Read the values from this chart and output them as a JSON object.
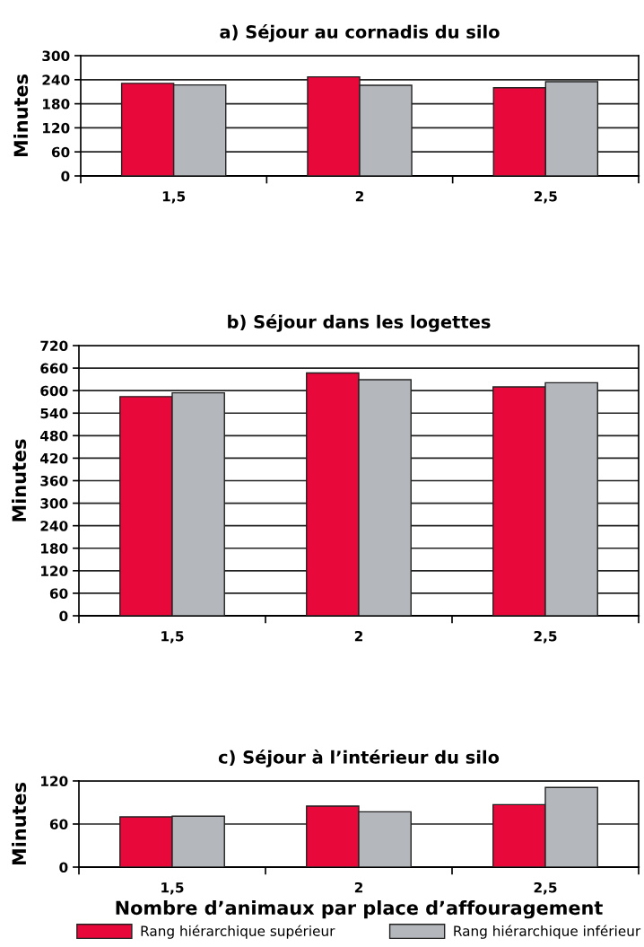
{
  "chart_data": [
    {
      "type": "bar",
      "title": "a) Séjour au cornadis du silo",
      "ylabel": "Minutes",
      "categories": [
        "1,5",
        "2",
        "2,5"
      ],
      "series": [
        {
          "color": "#e8083a",
          "values": [
            231,
            247,
            220
          ]
        },
        {
          "color": "#b4b8bc",
          "values": [
            227,
            226,
            235
          ]
        }
      ],
      "ylim": [
        0,
        300
      ],
      "yticks": [
        0,
        60,
        120,
        180,
        240,
        300
      ],
      "grid": "y"
    },
    {
      "type": "bar",
      "title": "b) Séjour dans les logettes",
      "ylabel": "Minutes",
      "categories": [
        "1,5",
        "2",
        "2,5"
      ],
      "series": [
        {
          "color": "#e8083a",
          "values": [
            584,
            647,
            610
          ]
        },
        {
          "color": "#b4b8bc",
          "values": [
            594,
            629,
            621
          ]
        }
      ],
      "ylim": [
        0,
        720
      ],
      "yticks": [
        0,
        60,
        120,
        180,
        240,
        300,
        360,
        420,
        480,
        540,
        600,
        660,
        720
      ],
      "grid": "y"
    },
    {
      "type": "bar",
      "title": "c) Séjour à l’intérieur du silo",
      "ylabel": "Minutes",
      "xlabel": "Nombre d’animaux par place d’affouragement",
      "categories": [
        "1,5",
        "2",
        "2,5"
      ],
      "series": [
        {
          "name": "Rang hiérarchique supérieur",
          "color": "#e8083a",
          "values": [
            70,
            85,
            87
          ]
        },
        {
          "name": "Rang hiérarchique inférieur",
          "color": "#b4b8bc",
          "values": [
            71,
            77,
            111
          ]
        }
      ],
      "ylim": [
        0,
        120
      ],
      "yticks": [
        0,
        60,
        120
      ],
      "grid": "y",
      "legend": "bottom"
    }
  ]
}
